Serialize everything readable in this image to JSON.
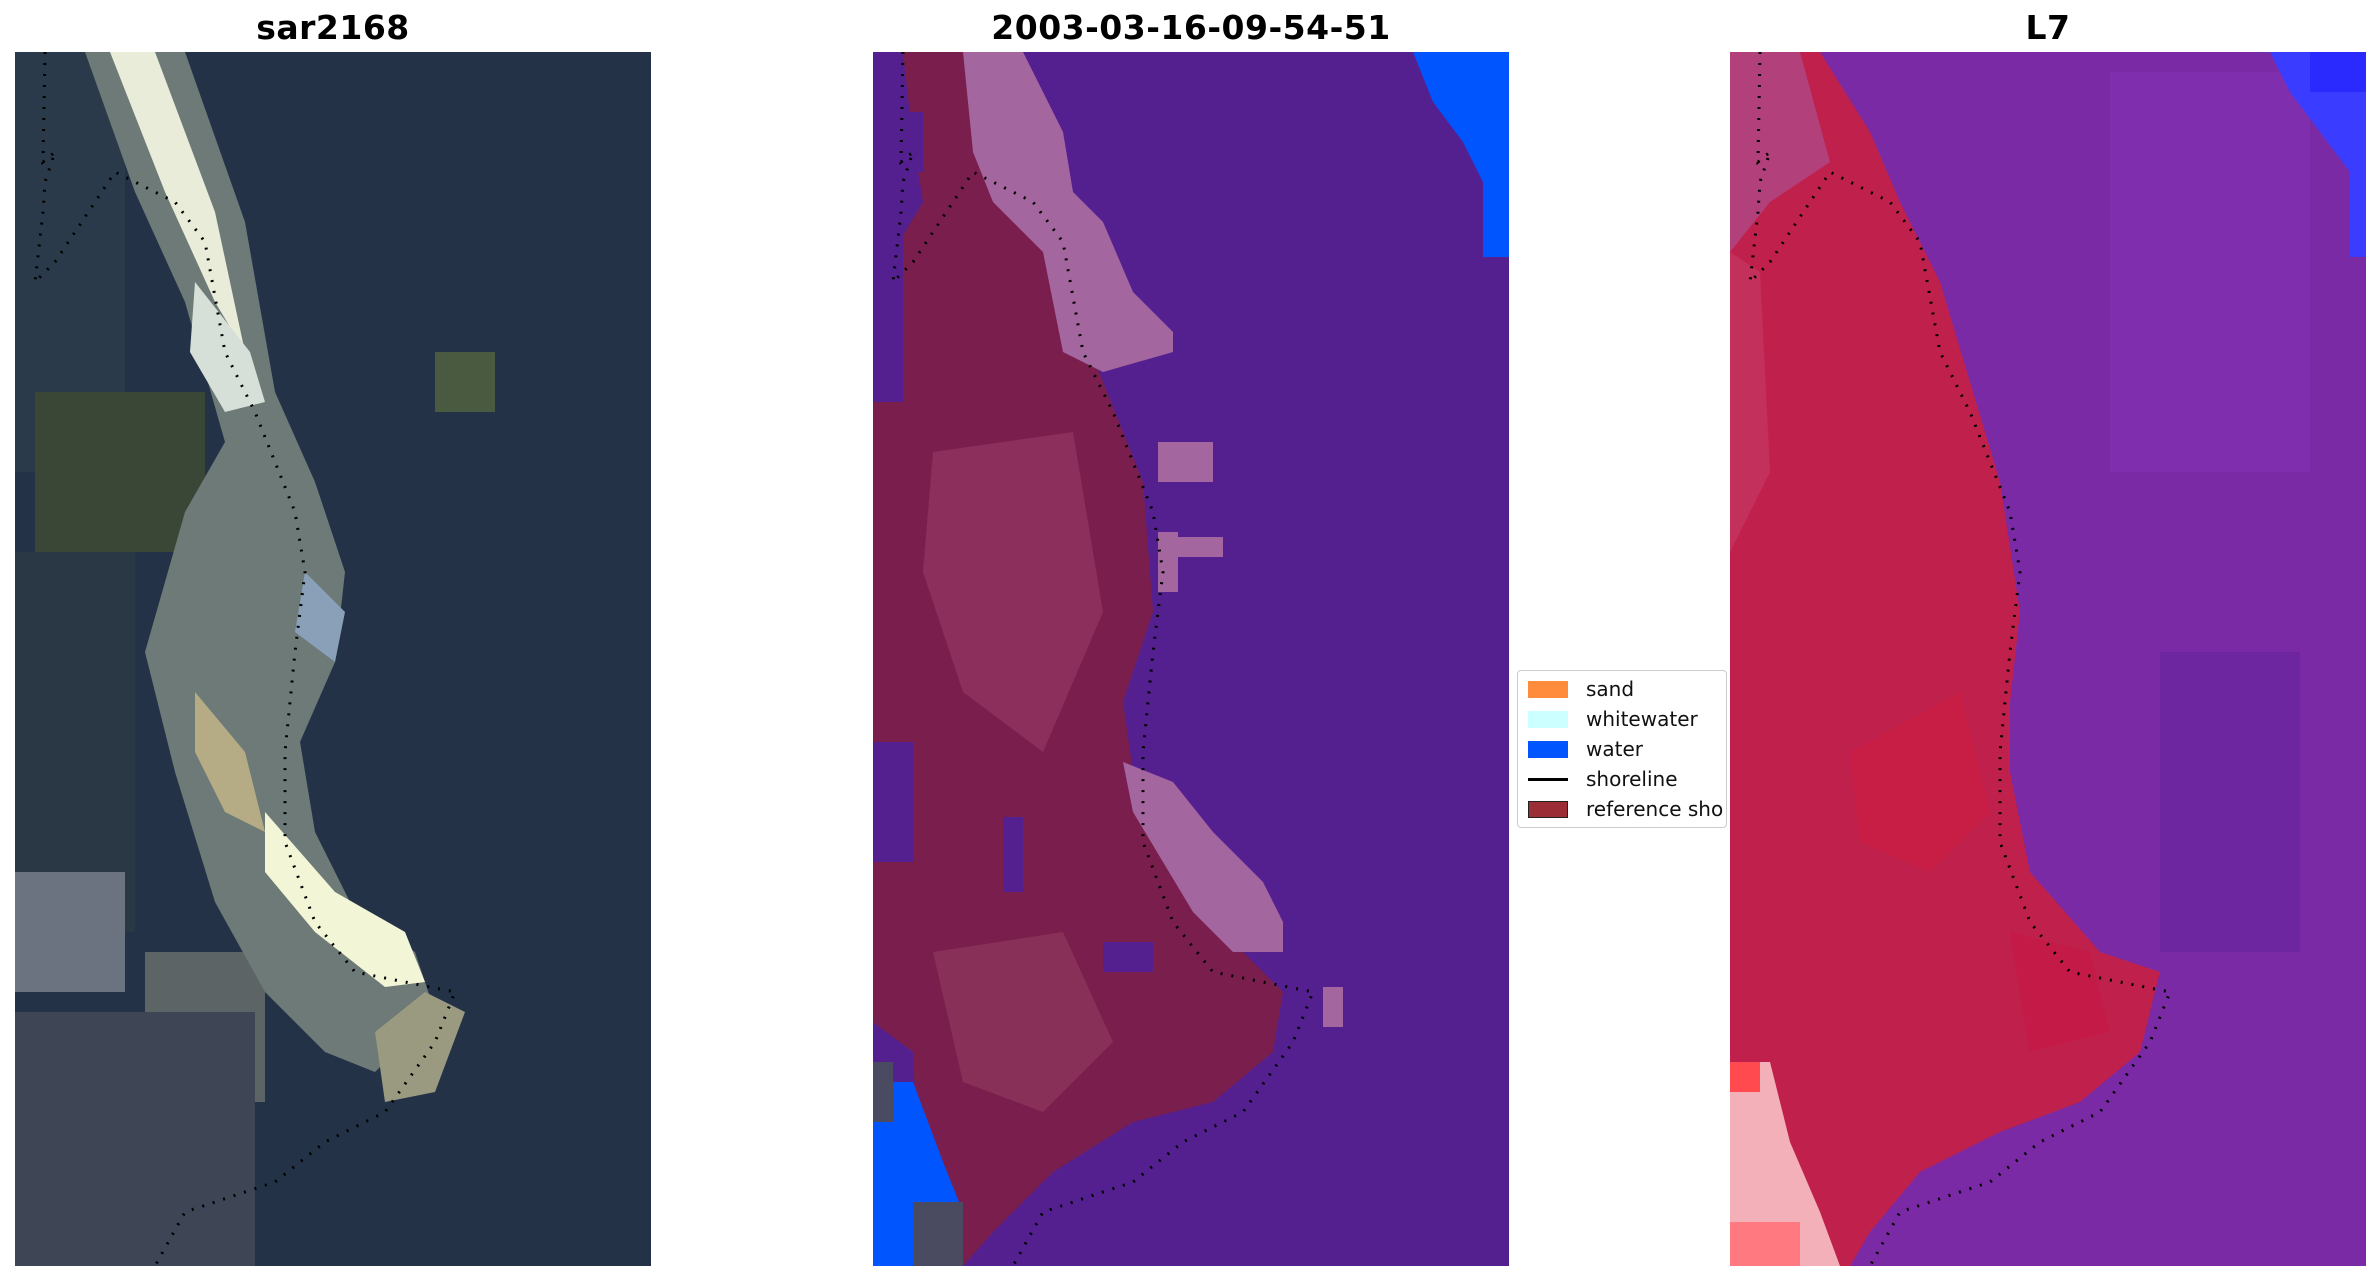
{
  "panels": [
    {
      "title": "sar2168"
    },
    {
      "title": "2003-03-16-09-54-51"
    },
    {
      "title": "L7"
    }
  ],
  "legend": {
    "items": [
      {
        "label": "sand",
        "color": "#ff8c3c"
      },
      {
        "label": "whitewater",
        "color": "#ccffff"
      },
      {
        "label": "water",
        "color": "#0055ff"
      },
      {
        "label": "shoreline",
        "color": "#000000"
      },
      {
        "label": "reference sho",
        "color": "#9a2d35"
      }
    ]
  },
  "colors": {
    "rgb_background": "#243248",
    "classified_water_body": "#54208f",
    "classified_land": "#7a1f4d",
    "classified_whitewater": "#a4669f",
    "classified_water": "#0055ff",
    "swir_background": "#7a2aa4",
    "swir_land": "#c0204c"
  }
}
